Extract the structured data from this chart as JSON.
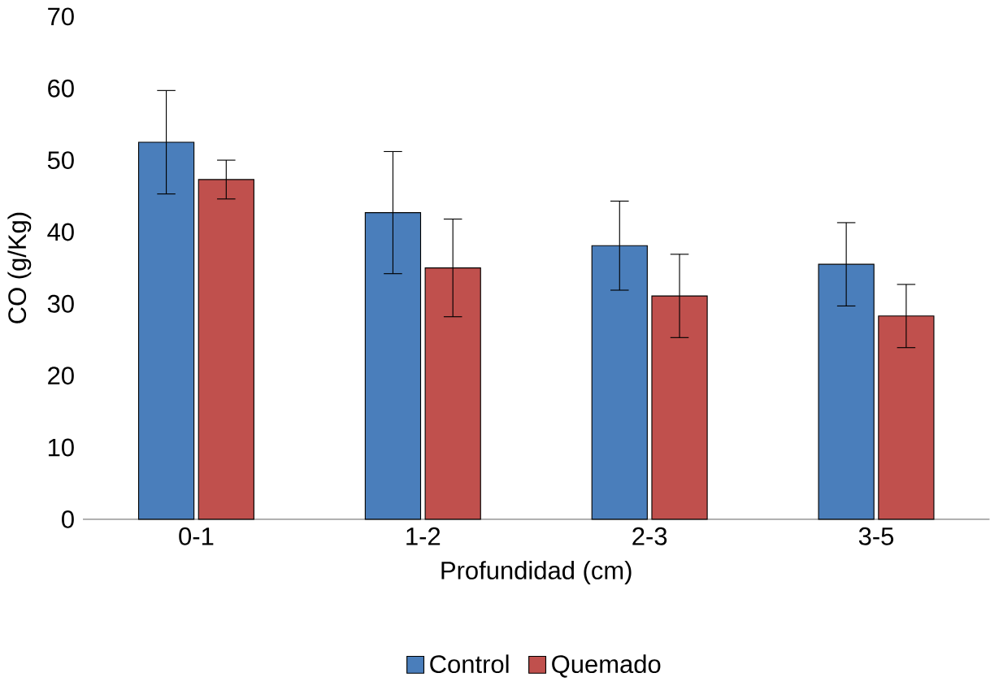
{
  "chart_data": {
    "type": "bar",
    "xlabel": "Profundidad (cm)",
    "ylabel": "CO (g/Kg)",
    "categories": [
      "0-1",
      "1-2",
      "2-3",
      "3-5"
    ],
    "series": [
      {
        "name": "Control",
        "color": "#4a7ebb",
        "values": [
          52.5,
          42.7,
          38.1,
          35.5
        ],
        "errors": [
          7.2,
          8.5,
          6.2,
          5.8
        ]
      },
      {
        "name": "Quemado",
        "color": "#c0504d",
        "values": [
          47.3,
          35.0,
          31.1,
          28.3
        ],
        "errors": [
          2.7,
          6.8,
          5.8,
          4.4
        ]
      }
    ],
    "ylim": [
      0,
      70
    ],
    "yticks": [
      0,
      10,
      20,
      30,
      40,
      50,
      60,
      70
    ],
    "grid": false,
    "legend": "bottom"
  }
}
